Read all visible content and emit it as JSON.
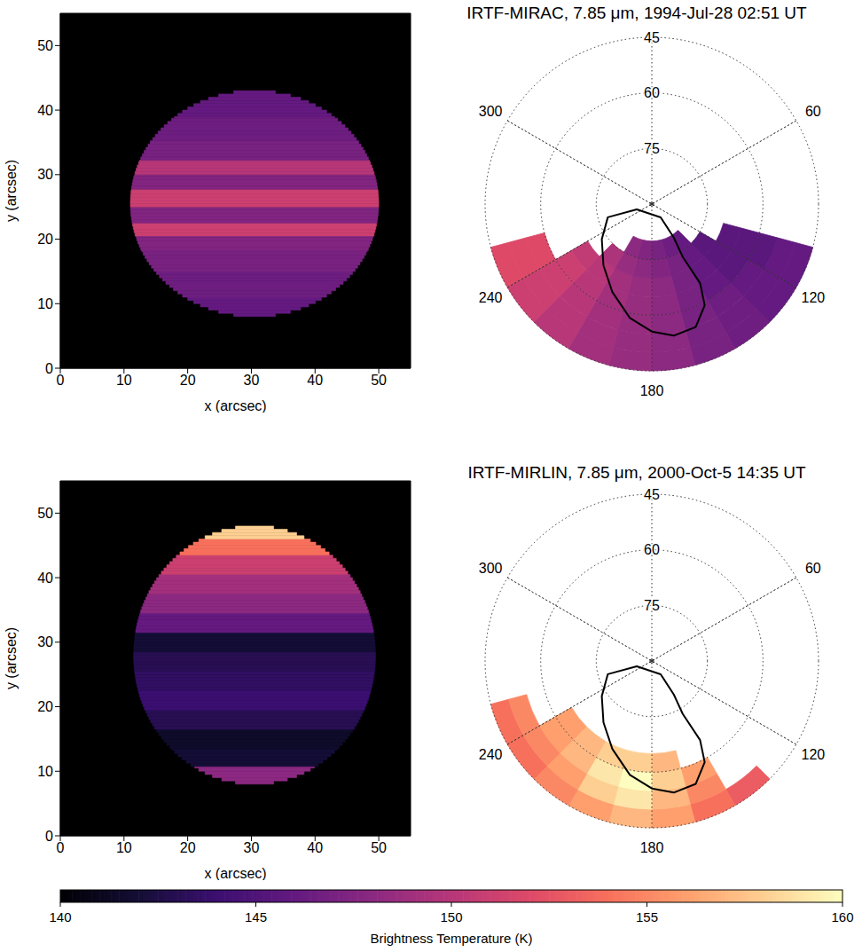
{
  "chart_data": [
    {
      "type": "heatmap",
      "xlabel": "x (arcsec)",
      "ylabel": "y (arcsec)",
      "xlim": [
        0,
        55
      ],
      "ylim": [
        0,
        55
      ],
      "xticks": [
        0,
        10,
        20,
        30,
        40,
        50
      ],
      "yticks": [
        0,
        10,
        20,
        30,
        40,
        50
      ],
      "disk": {
        "center": [
          30.5,
          25.5
        ],
        "radii": [
          19.5,
          17.5
        ]
      },
      "profile": {
        "y": [
          9,
          13,
          17,
          19.5,
          21.5,
          23.5,
          26.5,
          29,
          31,
          33.5,
          37,
          41
        ],
        "values": [
          146,
          146.5,
          147,
          147.5,
          151,
          147.5,
          151,
          147.5,
          150,
          147,
          146.5,
          146
        ]
      }
    },
    {
      "type": "polar_map",
      "title": "IRTF-MIRAC, 7.85 μm, 1994-Jul-28 02:51 UT",
      "lat_lim": [
        45,
        90
      ],
      "lat_ticks": [
        45,
        60,
        75
      ],
      "lon_ticks": [
        60,
        120,
        180,
        240,
        300
      ],
      "lat_edges": [
        45,
        50,
        55,
        60,
        65,
        70,
        75,
        80,
        85
      ],
      "lon_edges": [
        105,
        120,
        135,
        150,
        165,
        180,
        195,
        210,
        225,
        240,
        255
      ],
      "cells": [
        [
          146,
          146,
          146.5,
          147,
          148,
          148.5,
          149,
          150,
          151,
          152
        ],
        [
          146,
          146,
          146.5,
          147,
          148,
          148.5,
          149,
          150,
          151,
          152
        ],
        [
          145.5,
          146,
          146.5,
          147,
          148,
          148.5,
          149,
          150,
          151,
          152
        ],
        [
          145.5,
          145.5,
          146,
          147,
          148,
          148.5,
          149,
          150,
          151,
          null
        ],
        [
          145.5,
          145.5,
          146,
          147,
          148,
          148.5,
          149,
          150,
          150.5,
          null
        ],
        [
          null,
          145.5,
          146,
          147,
          147.5,
          148,
          148.5,
          149.5,
          null,
          null
        ],
        [
          null,
          null,
          146,
          146.5,
          147,
          147.5,
          148,
          null,
          null,
          null
        ],
        [
          null,
          null,
          null,
          null,
          null,
          null,
          null,
          null,
          null,
          null
        ]
      ],
      "contour": {
        "lat": [
          85.7,
          85.7,
          79.2,
          73.5,
          65,
          59.2,
          54.8,
          54,
          55.6,
          58.7,
          64,
          68.9,
          73.5,
          77.6
        ],
        "lon": [
          250.6,
          146.3,
          146.7,
          149.7,
          148.6,
          152.4,
          160.3,
          170.5,
          180,
          190.9,
          204.2,
          218.2,
          234.9,
          253.3
        ]
      }
    },
    {
      "type": "heatmap",
      "xlabel": "x (arcsec)",
      "ylabel": "y (arcsec)",
      "xlim": [
        0,
        55
      ],
      "ylim": [
        0,
        55
      ],
      "xticks": [
        0,
        10,
        20,
        30,
        40,
        50
      ],
      "yticks": [
        0,
        10,
        20,
        30,
        40,
        50
      ],
      "disk": {
        "center": [
          30.5,
          28
        ],
        "radii": [
          19,
          20
        ]
      },
      "profile": {
        "y": [
          9.5,
          12,
          15,
          18,
          21,
          24,
          27,
          30,
          33,
          36,
          39,
          42,
          45,
          47
        ],
        "values": [
          148,
          142,
          141.5,
          143,
          144,
          143.5,
          143,
          142,
          146,
          148,
          149,
          151,
          154,
          158
        ]
      }
    },
    {
      "type": "polar_map",
      "title": "IRTF-MIRLIN, 7.85 μm, 2000-Oct-5 14:35 UT",
      "lat_lim": [
        45,
        90
      ],
      "lat_ticks": [
        45,
        60,
        75
      ],
      "lon_ticks": [
        60,
        120,
        180,
        240,
        300
      ],
      "lat_edges": [
        45,
        50,
        55,
        60,
        65,
        70,
        75,
        80,
        85
      ],
      "lon_edges": [
        105,
        120,
        135,
        150,
        165,
        180,
        195,
        210,
        225,
        240,
        255
      ],
      "cells": [
        [
          null,
          null,
          153,
          154,
          156,
          157,
          156,
          155,
          154,
          154
        ],
        [
          null,
          null,
          null,
          155,
          157,
          159,
          158,
          156,
          155,
          155
        ],
        [
          null,
          null,
          null,
          156,
          158,
          161,
          159,
          157,
          156,
          null
        ],
        [
          null,
          null,
          null,
          null,
          157,
          158,
          158,
          157,
          156,
          null
        ],
        [
          null,
          null,
          null,
          null,
          null,
          null,
          null,
          null,
          null,
          null
        ],
        [
          null,
          null,
          null,
          null,
          null,
          null,
          null,
          null,
          null,
          null
        ],
        [
          null,
          null,
          null,
          null,
          null,
          null,
          null,
          null,
          null,
          null
        ],
        [
          null,
          null,
          null,
          null,
          null,
          null,
          null,
          null,
          null,
          null
        ]
      ],
      "contour": {
        "lat": [
          85.7,
          85.7,
          79.2,
          73.5,
          65,
          59.2,
          54.8,
          54,
          55.6,
          58.7,
          64,
          68.9,
          73.5,
          77.6
        ],
        "lon": [
          250.6,
          146.3,
          146.7,
          149.7,
          148.6,
          152.4,
          160.3,
          170.5,
          180,
          190.9,
          204.2,
          218.2,
          234.9,
          253.3
        ]
      }
    }
  ],
  "colorbar": {
    "label": "Brightness Temperature (K)",
    "range": [
      140,
      160
    ],
    "ticks": [
      140,
      145,
      150,
      155,
      160
    ]
  }
}
